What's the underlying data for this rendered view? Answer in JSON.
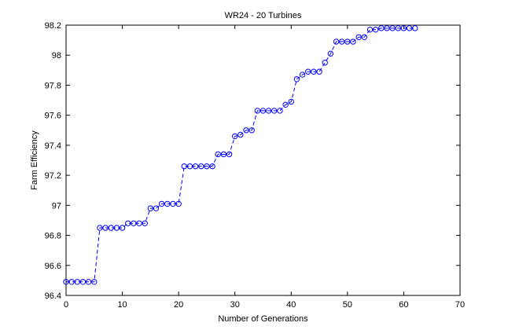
{
  "chart_data": {
    "type": "line",
    "title": "WR24 - 20 Turbines",
    "xlabel": "Number of Generations",
    "ylabel": "Farm Efficiency",
    "xlim": [
      0,
      70
    ],
    "ylim": [
      96.4,
      98.2
    ],
    "xticks": [
      0,
      10,
      20,
      30,
      40,
      50,
      60,
      70
    ],
    "yticks": [
      96.4,
      96.6,
      96.8,
      97,
      97.2,
      97.4,
      97.6,
      97.8,
      98,
      98.2
    ],
    "ytick_labels": [
      "96.4",
      "96.6",
      "96.8",
      "97",
      "97.2",
      "97.4",
      "97.6",
      "97.8",
      "98",
      "98.2"
    ],
    "grid": false,
    "series": [
      {
        "color": "#0000ff",
        "line_style": "dashed",
        "marker": "circle",
        "x": [
          0,
          1,
          2,
          3,
          4,
          5,
          6,
          7,
          8,
          9,
          10,
          11,
          12,
          13,
          14,
          15,
          16,
          17,
          18,
          19,
          20,
          21,
          22,
          23,
          24,
          25,
          26,
          27,
          28,
          29,
          30,
          31,
          32,
          33,
          34,
          35,
          36,
          37,
          38,
          39,
          40,
          41,
          42,
          43,
          44,
          45,
          46,
          47,
          48,
          49,
          50,
          51,
          52,
          53,
          54,
          55,
          56,
          57,
          58,
          59,
          60,
          61,
          62
        ],
        "y": [
          96.49,
          96.49,
          96.49,
          96.49,
          96.49,
          96.49,
          96.85,
          96.85,
          96.85,
          96.85,
          96.85,
          96.88,
          96.88,
          96.88,
          96.88,
          96.98,
          96.98,
          97.01,
          97.01,
          97.01,
          97.01,
          97.26,
          97.26,
          97.26,
          97.26,
          97.26,
          97.26,
          97.34,
          97.34,
          97.34,
          97.46,
          97.47,
          97.5,
          97.5,
          97.63,
          97.63,
          97.63,
          97.63,
          97.63,
          97.67,
          97.69,
          97.84,
          97.87,
          97.89,
          97.89,
          97.89,
          97.95,
          98.01,
          98.09,
          98.09,
          98.09,
          98.09,
          98.12,
          98.12,
          98.17,
          98.17,
          98.18,
          98.18,
          98.18,
          98.18,
          98.18,
          98.18,
          98.18
        ]
      }
    ]
  }
}
